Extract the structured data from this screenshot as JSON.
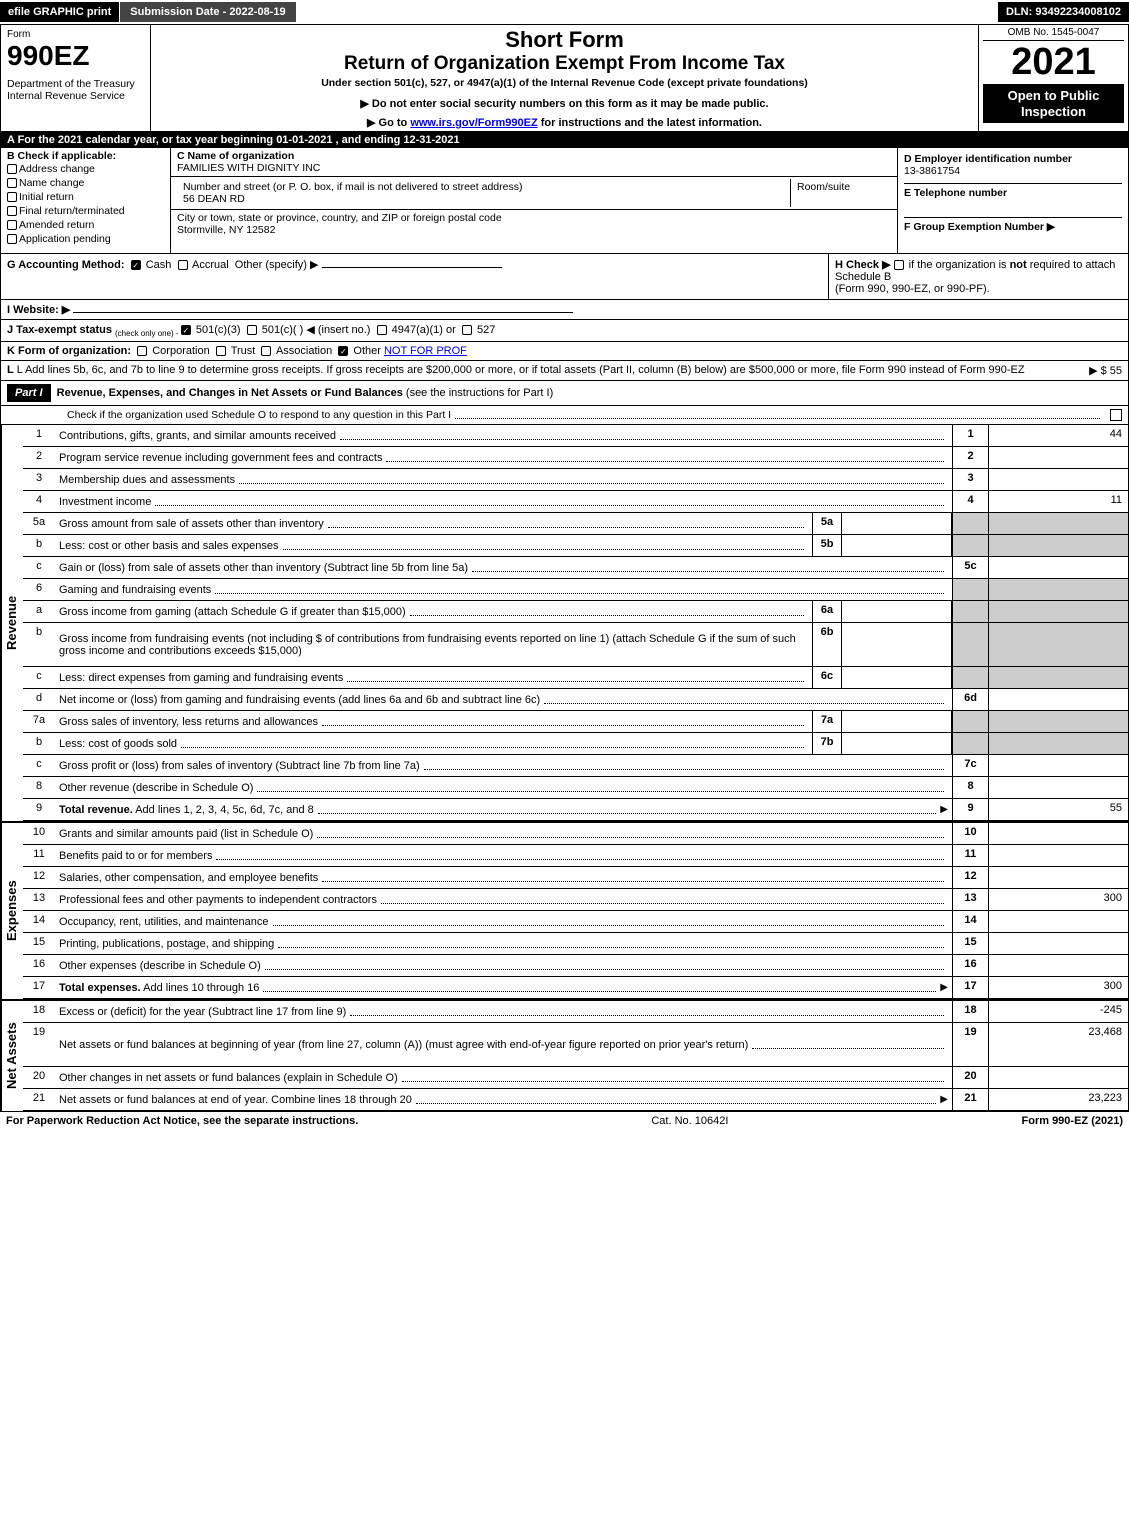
{
  "topbar": {
    "efile": "efile GRAPHIC print",
    "submission": "Submission Date - 2022-08-19",
    "dln": "DLN: 93492234008102"
  },
  "header": {
    "form_word": "Form",
    "form_num": "990EZ",
    "dept1": "Department of the Treasury",
    "dept2": "Internal Revenue Service",
    "short_form": "Short Form",
    "title": "Return of Organization Exempt From Income Tax",
    "under": "Under section 501(c), 527, or 4947(a)(1) of the Internal Revenue Code (except private foundations)",
    "instr1": "▶ Do not enter social security numbers on this form as it may be made public.",
    "instr2_pre": "▶ Go to ",
    "instr2_link": "www.irs.gov/Form990EZ",
    "instr2_post": " for instructions and the latest information.",
    "omb": "OMB No. 1545-0047",
    "year": "2021",
    "open": "Open to Public Inspection"
  },
  "row_a": "A  For the 2021 calendar year, or tax year beginning 01-01-2021 , and ending 12-31-2021",
  "section_b": {
    "b_head": "B  Check if applicable:",
    "checks": [
      "Address change",
      "Name change",
      "Initial return",
      "Final return/terminated",
      "Amended return",
      "Application pending"
    ],
    "c_label": "C Name of organization",
    "c_name": "FAMILIES WITH DIGNITY INC",
    "street_label": "Number and street (or P. O. box, if mail is not delivered to street address)",
    "street": "56 DEAN RD",
    "room_label": "Room/suite",
    "city_label": "City or town, state or province, country, and ZIP or foreign postal code",
    "city": "Stormville, NY  12582",
    "d_label": "D Employer identification number",
    "d_val": "13-3861754",
    "e_label": "E Telephone number",
    "f_label": "F Group Exemption Number  ▶"
  },
  "row_g": {
    "g_label": "G Accounting Method:",
    "cash": "Cash",
    "accrual": "Accrual",
    "other": "Other (specify) ▶",
    "h_label": "H  Check ▶",
    "h_text": "if the organization is ",
    "h_not": "not",
    "h_text2": " required to attach Schedule B",
    "h_text3": "(Form 990, 990-EZ, or 990-PF)."
  },
  "row_i": {
    "label": "I Website: ▶"
  },
  "row_j": {
    "pre": "J Tax-exempt status ",
    "sub": "(check only one) - ",
    "o1": "501(c)(3)",
    "o2": "501(c)(  ) ◀ (insert no.)",
    "o3": "4947(a)(1) or",
    "o4": "527"
  },
  "row_k": {
    "label": "K Form of organization:",
    "opts": [
      "Corporation",
      "Trust",
      "Association",
      "Other"
    ],
    "other_val": "NOT FOR PROF"
  },
  "row_l": {
    "text1": "L Add lines 5b, 6c, and 7b to line 9 to determine gross receipts. If gross receipts are $200,000 or more, or if total assets (Part II, column (B) below) are $500,000 or more, file Form 990 instead of Form 990-EZ",
    "val": "▶ $ 55"
  },
  "part1": {
    "label": "Part I",
    "title": "Revenue, Expenses, and Changes in Net Assets or Fund Balances",
    "title_paren": "(see the instructions for Part I)",
    "check_text": "Check if the organization used Schedule O to respond to any question in this Part I"
  },
  "side_labels": {
    "rev": "Revenue",
    "exp": "Expenses",
    "net": "Net Assets"
  },
  "lines": {
    "revenue": [
      {
        "n": "1",
        "d": "Contributions, gifts, grants, and similar amounts received",
        "rn": "1",
        "rv": "44"
      },
      {
        "n": "2",
        "d": "Program service revenue including government fees and contracts",
        "rn": "2",
        "rv": ""
      },
      {
        "n": "3",
        "d": "Membership dues and assessments",
        "rn": "3",
        "rv": ""
      },
      {
        "n": "4",
        "d": "Investment income",
        "rn": "4",
        "rv": "11"
      },
      {
        "n": "5a",
        "d": "Gross amount from sale of assets other than inventory",
        "mn": "5a",
        "mv": "",
        "shade": true
      },
      {
        "n": "b",
        "d": "Less: cost or other basis and sales expenses",
        "mn": "5b",
        "mv": "",
        "shade": true
      },
      {
        "n": "c",
        "d": "Gain or (loss) from sale of assets other than inventory (Subtract line 5b from line 5a)",
        "rn": "5c",
        "rv": ""
      },
      {
        "n": "6",
        "d": "Gaming and fundraising events",
        "shade": true,
        "noR": true
      },
      {
        "n": "a",
        "d": "Gross income from gaming (attach Schedule G if greater than $15,000)",
        "mn": "6a",
        "mv": "",
        "shade": true
      },
      {
        "n": "b",
        "d": "Gross income from fundraising events (not including $                     of contributions from fundraising events reported on line 1) (attach Schedule G if the sum of such gross income and contributions exceeds $15,000)",
        "mn": "6b",
        "mv": "",
        "tall": true,
        "shade": true
      },
      {
        "n": "c",
        "d": "Less: direct expenses from gaming and fundraising events",
        "mn": "6c",
        "mv": "",
        "shade": true
      },
      {
        "n": "d",
        "d": "Net income or (loss) from gaming and fundraising events (add lines 6a and 6b and subtract line 6c)",
        "rn": "6d",
        "rv": ""
      },
      {
        "n": "7a",
        "d": "Gross sales of inventory, less returns and allowances",
        "mn": "7a",
        "mv": "",
        "shade": true
      },
      {
        "n": "b",
        "d": "Less: cost of goods sold",
        "mn": "7b",
        "mv": "",
        "shade": true
      },
      {
        "n": "c",
        "d": "Gross profit or (loss) from sales of inventory (Subtract line 7b from line 7a)",
        "rn": "7c",
        "rv": ""
      },
      {
        "n": "8",
        "d": "Other revenue (describe in Schedule O)",
        "rn": "8",
        "rv": ""
      },
      {
        "n": "9",
        "d": "Total revenue. Add lines 1, 2, 3, 4, 5c, 6d, 7c, and 8",
        "rn": "9",
        "rv": "55",
        "bold": true,
        "arrow": true
      }
    ],
    "expenses": [
      {
        "n": "10",
        "d": "Grants and similar amounts paid (list in Schedule O)",
        "rn": "10",
        "rv": ""
      },
      {
        "n": "11",
        "d": "Benefits paid to or for members",
        "rn": "11",
        "rv": ""
      },
      {
        "n": "12",
        "d": "Salaries, other compensation, and employee benefits",
        "rn": "12",
        "rv": ""
      },
      {
        "n": "13",
        "d": "Professional fees and other payments to independent contractors",
        "rn": "13",
        "rv": "300"
      },
      {
        "n": "14",
        "d": "Occupancy, rent, utilities, and maintenance",
        "rn": "14",
        "rv": ""
      },
      {
        "n": "15",
        "d": "Printing, publications, postage, and shipping",
        "rn": "15",
        "rv": ""
      },
      {
        "n": "16",
        "d": "Other expenses (describe in Schedule O)",
        "rn": "16",
        "rv": ""
      },
      {
        "n": "17",
        "d": "Total expenses. Add lines 10 through 16",
        "rn": "17",
        "rv": "300",
        "bold": true,
        "arrow": true
      }
    ],
    "netassets": [
      {
        "n": "18",
        "d": "Excess or (deficit) for the year (Subtract line 17 from line 9)",
        "rn": "18",
        "rv": "-245"
      },
      {
        "n": "19",
        "d": "Net assets or fund balances at beginning of year (from line 27, column (A)) (must agree with end-of-year figure reported on prior year's return)",
        "rn": "19",
        "rv": "23,468",
        "tall": true
      },
      {
        "n": "20",
        "d": "Other changes in net assets or fund balances (explain in Schedule O)",
        "rn": "20",
        "rv": ""
      },
      {
        "n": "21",
        "d": "Net assets or fund balances at end of year. Combine lines 18 through 20",
        "rn": "21",
        "rv": "23,223",
        "arrow": true
      }
    ]
  },
  "footer": {
    "left": "For Paperwork Reduction Act Notice, see the separate instructions.",
    "mid": "Cat. No. 10642I",
    "right_pre": "Form ",
    "right_bold": "990-EZ",
    "right_post": " (2021)"
  }
}
